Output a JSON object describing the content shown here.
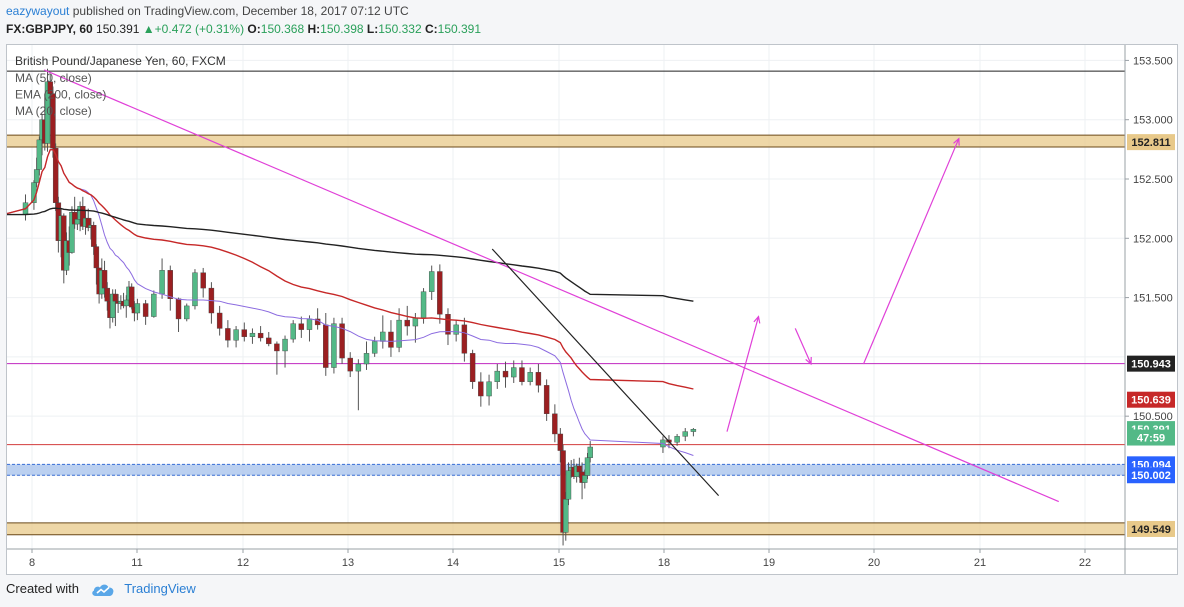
{
  "header": {
    "author": "eazywayout",
    "published_text": "published on TradingView.com, December 18, 2017 07:12 UTC"
  },
  "quote": {
    "symbol": "FX:GBPJPY, 60",
    "last": "150.391",
    "change": "+0.472 (+0.31%)",
    "o_label": "O:",
    "o_value": "150.368",
    "h_label": "H:",
    "h_value": "150.398",
    "l_label": "L:",
    "l_value": "150.332",
    "c_label": "C:",
    "c_value": "150.391"
  },
  "footer": {
    "created_with": "Created with",
    "brand": "TradingView",
    "icon": "tradingview-cloud-icon"
  },
  "colors": {
    "bull": "#53b987",
    "bear": "#9b1f21",
    "ma50": "#c62828",
    "ema200": "#222222",
    "ma20": "#8c6ce0",
    "trend": "#e040d8",
    "support_zone": "#e8c98a",
    "blue_zone": "#aac4ec",
    "price_line": "#d23b3b"
  },
  "chart_data": {
    "type": "candlestick",
    "title": "British Pound/Japanese Yen, 60, FXCM",
    "legend": [
      "MA (50, close)",
      "EMA (200, close)",
      "MA (20, close)"
    ],
    "x_ticks": [
      "8",
      "11",
      "12",
      "13",
      "14",
      "15",
      "18",
      "19",
      "20",
      "21",
      "22"
    ],
    "y_ticks": [
      "153.500",
      "153.000",
      "152.500",
      "152.000",
      "151.500",
      "150.500"
    ],
    "y_range": [
      149.38,
      153.63
    ],
    "x_range_days": [
      7.9,
      22.4
    ],
    "price_labels": [
      {
        "value": 152.811,
        "text": "152.811",
        "bg": "#e8c98a",
        "fg": "#222222"
      },
      {
        "value": 150.943,
        "text": "150.943",
        "bg": "#222222",
        "fg": "#ffffff"
      },
      {
        "value": 150.639,
        "text": "150.639",
        "bg": "#c62828",
        "fg": "#ffffff"
      },
      {
        "value": 150.391,
        "text": "150.391",
        "bg": "#53b987",
        "fg": "#ffffff"
      },
      {
        "value": 150.32,
        "text": "47:59",
        "bg": "#53b987",
        "fg": "#ffffff"
      },
      {
        "value": 150.094,
        "text": "150.094",
        "bg": "#2962ff",
        "fg": "#ffffff"
      },
      {
        "value": 150.002,
        "text": "150.002",
        "bg": "#2962ff",
        "fg": "#ffffff"
      },
      {
        "value": 149.549,
        "text": "149.549",
        "bg": "#e8c98a",
        "fg": "#222222"
      }
    ],
    "zones": [
      {
        "low": 152.77,
        "high": 152.87,
        "color": "#e8c98a"
      },
      {
        "low": 150.002,
        "high": 150.094,
        "color": "#aac4ec"
      },
      {
        "low": 149.5,
        "high": 149.6,
        "color": "#e8c98a"
      }
    ],
    "hlines": [
      {
        "value": 153.41,
        "color": "#222222"
      },
      {
        "value": 150.943,
        "color": "#c028c0"
      },
      {
        "value": 150.26,
        "color": "#d23b3b"
      }
    ],
    "trendlines": [
      {
        "x1": 8.35,
        "y1": 153.42,
        "x2": 21.75,
        "y2": 149.78,
        "color": "#e040d8"
      },
      {
        "x1": 14.37,
        "y1": 151.91,
        "x2": 18.52,
        "y2": 149.83,
        "color": "#222222"
      }
    ],
    "projection": [
      {
        "x1": 18.6,
        "y1": 150.37,
        "x2": 18.9,
        "y2": 151.34
      },
      {
        "x1": 19.25,
        "y1": 151.24,
        "x2": 19.4,
        "y2": 150.94
      },
      {
        "x1": 19.9,
        "y1": 150.94,
        "x2": 20.8,
        "y2": 152.84
      }
    ],
    "ohlc": [
      [
        152.03,
        152.27,
        152.01,
        152.2
      ],
      [
        152.2,
        152.37,
        152.15,
        152.3
      ],
      [
        152.3,
        152.49,
        152.24,
        152.47
      ],
      [
        152.47,
        152.68,
        152.43,
        152.58
      ],
      [
        152.58,
        152.86,
        152.53,
        152.83
      ],
      [
        152.83,
        153.05,
        152.7,
        153.0
      ],
      [
        153.0,
        153.22,
        152.74,
        152.8
      ],
      [
        152.8,
        153.43,
        152.73,
        153.32
      ],
      [
        153.32,
        153.38,
        153.05,
        153.22
      ],
      [
        153.22,
        153.28,
        152.68,
        152.76
      ],
      [
        152.76,
        152.8,
        152.23,
        152.3
      ],
      [
        152.3,
        152.35,
        151.88,
        151.98
      ],
      [
        151.98,
        152.25,
        151.84,
        152.19
      ],
      [
        152.19,
        152.21,
        151.62,
        151.73
      ],
      [
        151.73,
        152.05,
        151.69,
        151.98
      ],
      [
        151.98,
        152.1,
        151.77,
        151.88
      ],
      [
        151.88,
        152.27,
        151.87,
        152.22
      ],
      [
        152.22,
        152.35,
        152.08,
        152.12
      ],
      [
        152.12,
        152.25,
        152.07,
        152.16
      ],
      [
        152.16,
        152.31,
        152.06,
        152.27
      ],
      [
        152.27,
        152.35,
        152.07,
        152.1
      ],
      [
        152.1,
        152.23,
        152.03,
        152.17
      ],
      [
        152.17,
        152.25,
        152.06,
        152.09
      ],
      [
        152.09,
        152.17,
        151.99,
        152.11
      ],
      [
        152.11,
        152.14,
        151.86,
        151.93
      ],
      [
        151.93,
        151.95,
        151.61,
        151.75
      ],
      [
        151.75,
        151.75,
        151.45,
        151.53
      ],
      [
        151.53,
        151.83,
        151.49,
        151.73
      ],
      [
        151.73,
        151.81,
        151.5,
        151.58
      ],
      [
        151.58,
        151.63,
        151.39,
        151.47
      ],
      [
        151.47,
        151.52,
        151.24,
        151.33
      ],
      [
        151.33,
        151.57,
        151.29,
        151.53
      ],
      [
        151.53,
        151.57,
        151.26,
        151.47
      ],
      [
        151.47,
        151.53,
        151.37,
        151.45
      ],
      [
        151.45,
        151.52,
        151.4,
        151.47
      ],
      [
        151.47,
        151.54,
        151.41,
        151.43
      ],
      [
        151.43,
        151.52,
        151.33,
        151.48
      ],
      [
        151.48,
        151.64,
        151.43,
        151.59
      ],
      [
        151.59,
        151.62,
        151.4,
        151.42
      ],
      [
        151.42,
        151.47,
        151.3,
        151.37
      ],
      [
        151.37,
        151.49,
        151.31,
        151.45
      ],
      [
        151.45,
        151.48,
        151.27,
        151.34
      ],
      [
        151.34,
        151.56,
        151.33,
        151.53
      ],
      [
        151.53,
        151.83,
        151.49,
        151.73
      ],
      [
        151.73,
        151.77,
        151.39,
        151.49
      ],
      [
        151.49,
        151.5,
        151.21,
        151.32
      ],
      [
        151.32,
        151.45,
        151.3,
        151.43
      ],
      [
        151.43,
        151.74,
        151.4,
        151.71
      ],
      [
        151.71,
        151.75,
        151.5,
        151.58
      ],
      [
        151.58,
        151.63,
        151.28,
        151.37
      ],
      [
        151.37,
        151.43,
        151.18,
        151.24
      ],
      [
        151.24,
        151.31,
        151.08,
        151.14
      ],
      [
        151.14,
        151.26,
        151.08,
        151.23
      ],
      [
        151.23,
        151.29,
        151.13,
        151.17
      ],
      [
        151.17,
        151.24,
        151.11,
        151.2
      ],
      [
        151.2,
        151.26,
        151.13,
        151.16
      ],
      [
        151.16,
        151.21,
        151.09,
        151.11
      ],
      [
        151.11,
        151.13,
        150.85,
        151.05
      ],
      [
        151.05,
        151.18,
        150.91,
        151.15
      ],
      [
        151.15,
        151.31,
        151.12,
        151.28
      ],
      [
        151.28,
        151.34,
        151.16,
        151.23
      ],
      [
        151.23,
        151.35,
        151.13,
        151.32
      ],
      [
        151.32,
        151.41,
        151.23,
        151.27
      ],
      [
        151.27,
        151.37,
        150.84,
        150.91
      ],
      [
        150.91,
        151.33,
        150.86,
        151.28
      ],
      [
        151.28,
        151.33,
        150.94,
        150.99
      ],
      [
        150.99,
        151.04,
        150.83,
        150.88
      ],
      [
        150.88,
        150.98,
        150.55,
        150.94
      ],
      [
        150.94,
        151.13,
        150.89,
        151.03
      ],
      [
        151.03,
        151.17,
        151.0,
        151.13
      ],
      [
        151.13,
        151.35,
        151.07,
        151.21
      ],
      [
        151.21,
        151.31,
        151.0,
        151.08
      ],
      [
        151.08,
        151.41,
        151.04,
        151.31
      ],
      [
        151.31,
        151.43,
        151.18,
        151.26
      ],
      [
        151.26,
        151.37,
        151.12,
        151.33
      ],
      [
        151.33,
        151.58,
        151.28,
        151.55
      ],
      [
        151.55,
        151.77,
        151.48,
        151.72
      ],
      [
        151.72,
        151.78,
        151.28,
        151.36
      ],
      [
        151.36,
        151.41,
        151.1,
        151.19
      ],
      [
        151.19,
        151.31,
        151.13,
        151.27
      ],
      [
        151.27,
        151.33,
        150.96,
        151.03
      ],
      [
        151.03,
        151.06,
        150.73,
        150.79
      ],
      [
        150.79,
        150.87,
        150.58,
        150.67
      ],
      [
        150.67,
        150.85,
        150.59,
        150.79
      ],
      [
        150.79,
        150.94,
        150.73,
        150.88
      ],
      [
        150.88,
        150.96,
        150.74,
        150.83
      ],
      [
        150.83,
        150.97,
        150.78,
        150.91
      ],
      [
        150.91,
        150.97,
        150.76,
        150.79
      ],
      [
        150.79,
        150.91,
        150.76,
        150.87
      ],
      [
        150.87,
        150.94,
        150.7,
        150.76
      ],
      [
        150.76,
        150.81,
        150.46,
        150.52
      ],
      [
        150.52,
        150.6,
        150.28,
        150.35
      ],
      [
        150.35,
        150.4,
        150.11,
        150.21
      ],
      [
        150.21,
        150.26,
        149.41,
        149.52
      ],
      [
        149.52,
        149.86,
        149.45,
        149.8
      ],
      [
        149.8,
        150.11,
        149.75,
        150.04
      ],
      [
        150.04,
        150.13,
        149.98,
        150.07
      ],
      [
        150.07,
        150.14,
        149.97,
        149.99
      ],
      [
        149.99,
        150.1,
        149.94,
        150.08
      ],
      [
        150.08,
        150.15,
        149.98,
        150.03
      ],
      [
        150.03,
        150.11,
        149.8,
        149.94
      ],
      [
        149.94,
        150.05,
        149.89,
        150.0
      ],
      [
        150.0,
        150.19,
        149.97,
        150.15
      ],
      [
        150.15,
        150.29,
        150.11,
        150.24
      ],
      [
        150.24,
        150.33,
        150.19,
        150.3
      ],
      [
        150.3,
        150.34,
        150.23,
        150.28
      ],
      [
        150.28,
        150.35,
        150.25,
        150.33
      ],
      [
        150.33,
        150.4,
        150.29,
        150.37
      ],
      [
        150.37,
        150.4,
        150.33,
        150.39
      ]
    ]
  }
}
